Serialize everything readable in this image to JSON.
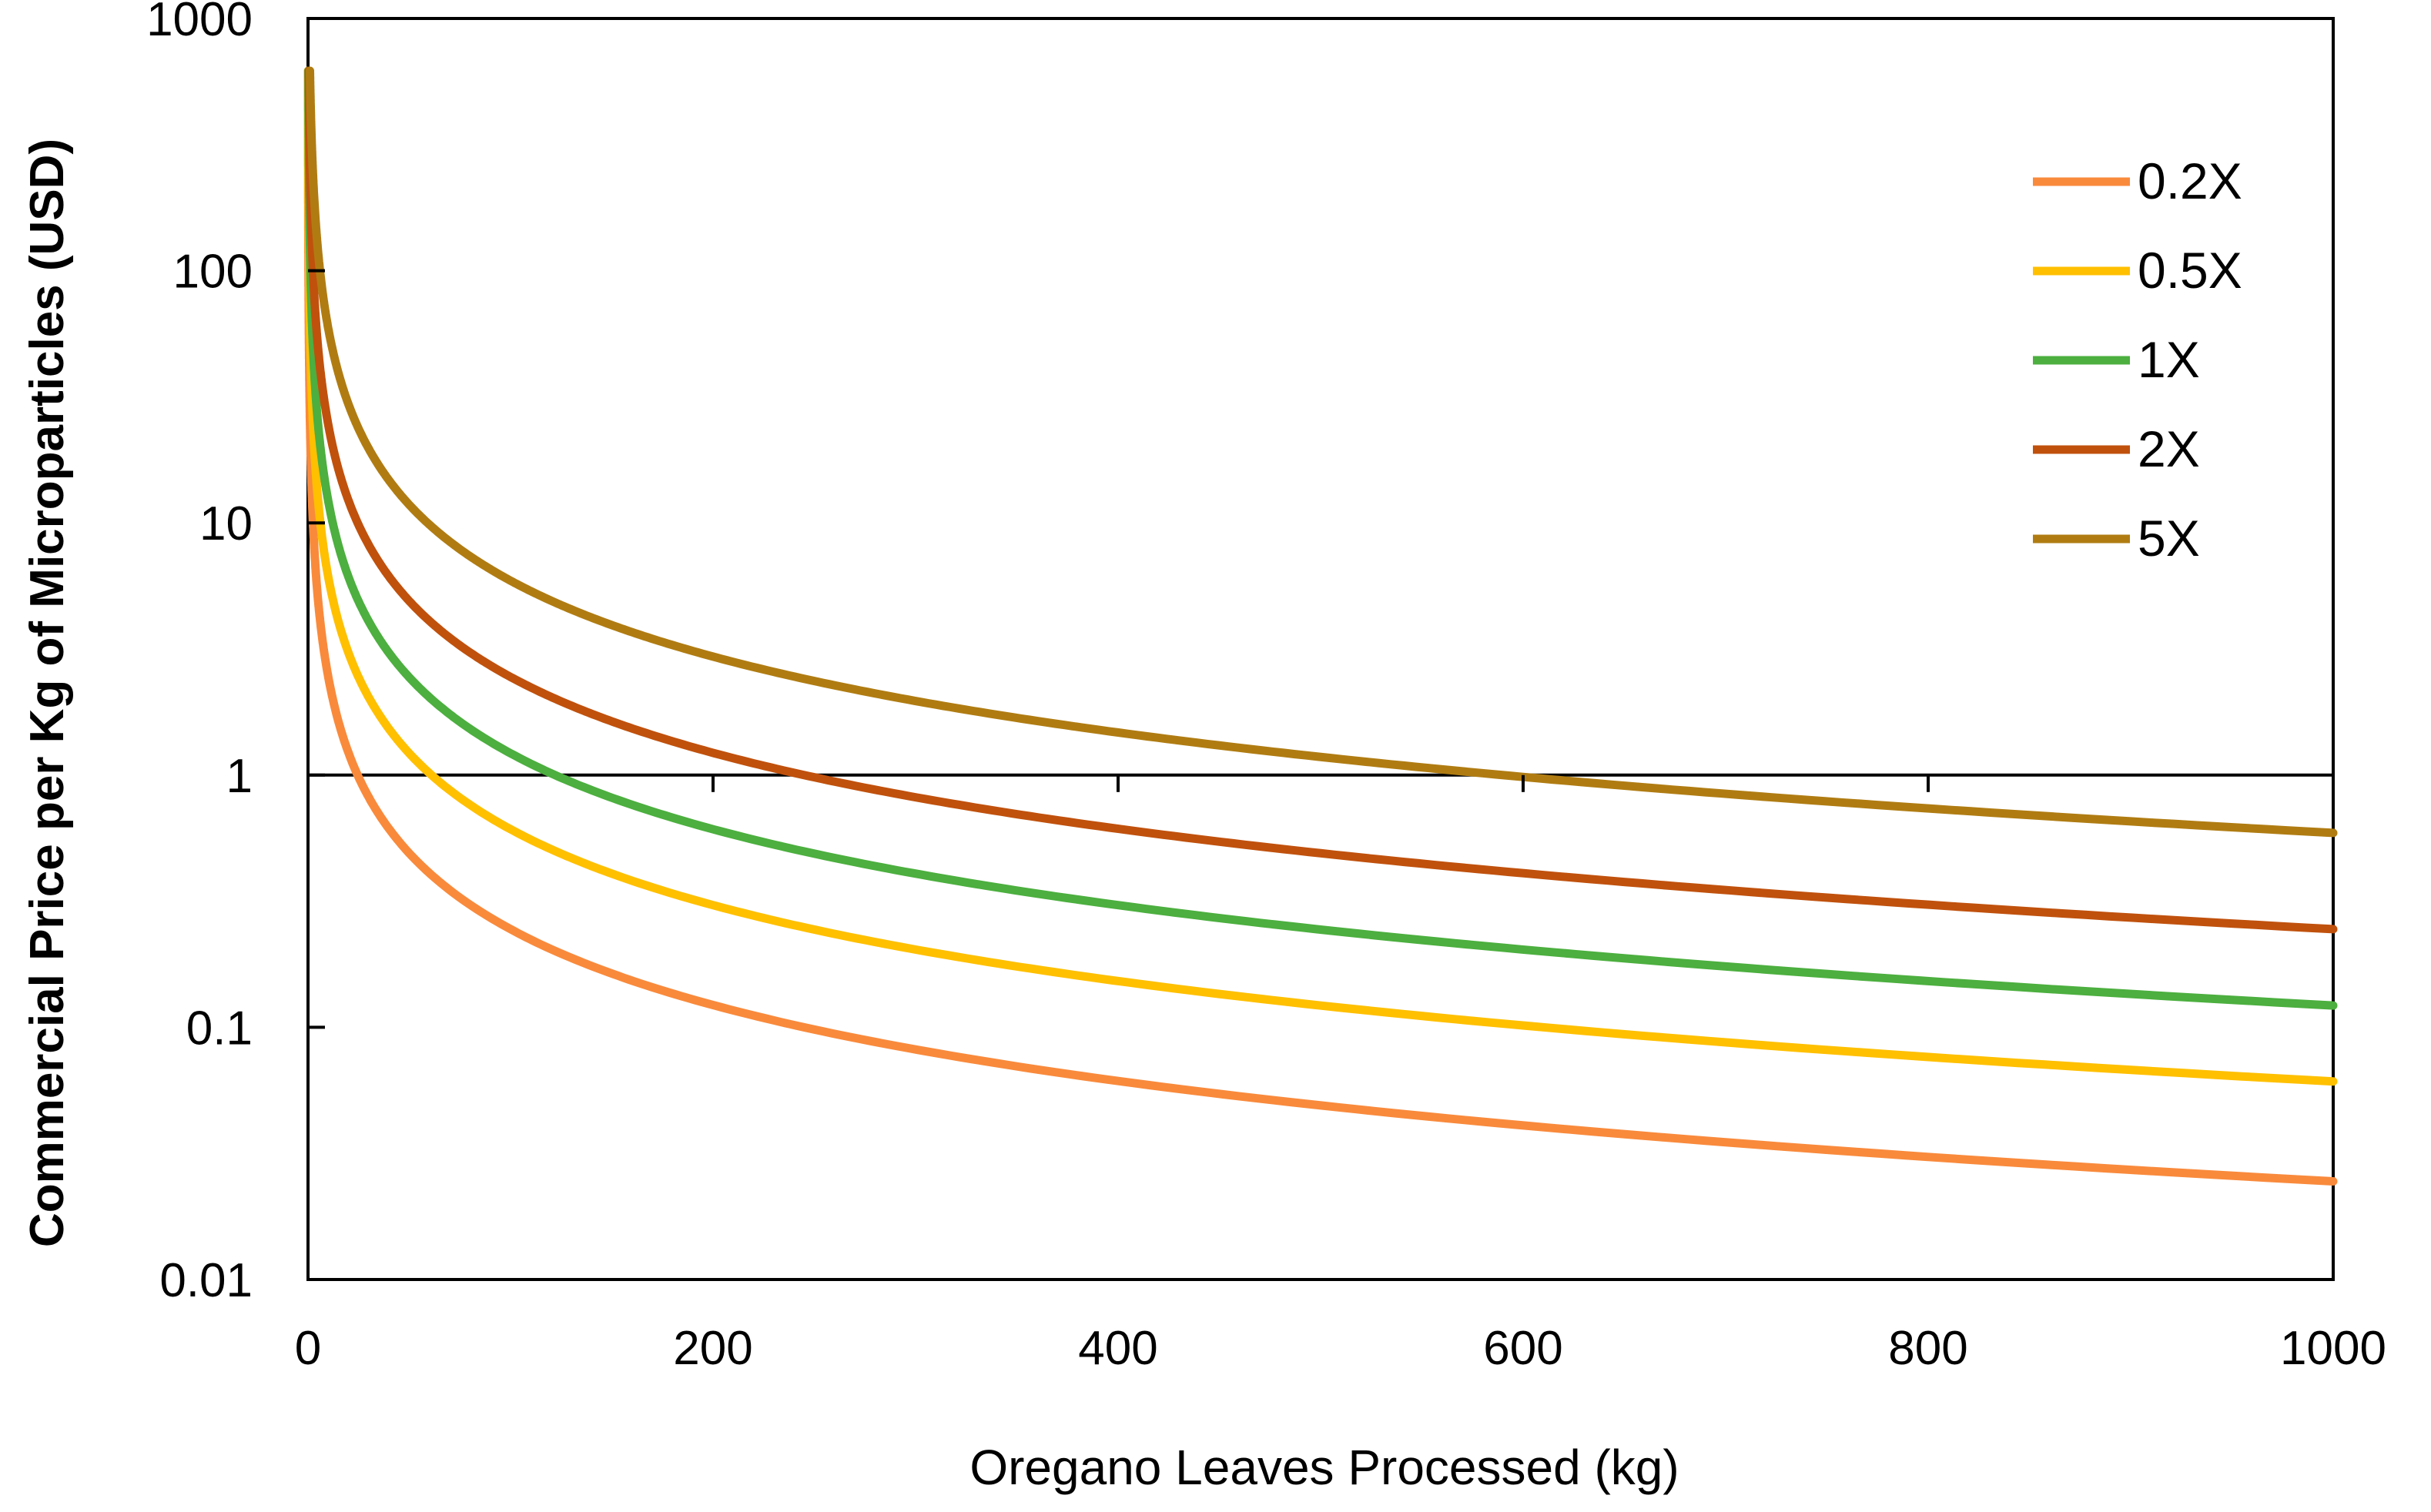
{
  "chart_data": {
    "type": "line",
    "title": "",
    "xlabel": "Oregano Leaves Processed (kg)",
    "ylabel": "Commercial Price per Kg of Microparticles   (USD)",
    "xlim": [
      0,
      1000
    ],
    "ylim": [
      0.01,
      1000
    ],
    "yscale": "log",
    "x_ticks": [
      "0",
      "200",
      "400",
      "600",
      "800",
      "1000"
    ],
    "y_ticks": [
      "0.01",
      "0.1",
      "1",
      "10",
      "100",
      "1000"
    ],
    "reference_line": {
      "y": 1
    },
    "legend_position": "top-right",
    "model": "price = k / kg",
    "series": [
      {
        "name": "0.2X",
        "color": "#F98A3C",
        "k": 24.5
      },
      {
        "name": "0.5X",
        "color": "#FFC000",
        "k": 61
      },
      {
        "name": "1X",
        "color": "#4CAF3F",
        "k": 122
      },
      {
        "name": "2X",
        "color": "#C0510D",
        "k": 245
      },
      {
        "name": "5X",
        "color": "#B07C12",
        "k": 590
      }
    ],
    "x": [
      2,
      5,
      10,
      25,
      50,
      100,
      200,
      400,
      600,
      800,
      1000
    ]
  }
}
